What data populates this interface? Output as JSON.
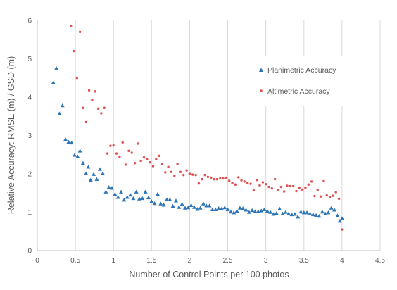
{
  "chart_data": {
    "type": "scatter",
    "title": "",
    "xlabel": "Number of Control Points per 100 photos",
    "ylabel": "Relative Accuracy: RMSE (m) / GSD (m)",
    "xlim": [
      0,
      4.5
    ],
    "ylim": [
      0,
      6
    ],
    "x_ticks": [
      0,
      0.5,
      1,
      1.5,
      2,
      2.5,
      3,
      3.5,
      4,
      4.5
    ],
    "x_tick_labels": [
      "0",
      "0.5",
      "1",
      "1.5",
      "2",
      "2.5",
      "3",
      "3.5",
      "4",
      "4.5"
    ],
    "y_ticks": [
      0,
      1,
      2,
      3,
      4,
      5,
      6
    ],
    "y_tick_labels": [
      "0",
      "1",
      "2",
      "3",
      "4",
      "5",
      "6"
    ],
    "grid": "vertical",
    "legend_position": "top-right",
    "colors": {
      "planimetric": "#2e75b6",
      "altimetric": "#e05050",
      "grid": "#d9d9d9",
      "axis": "#bfbfbf"
    },
    "series": [
      {
        "name": "Planimetric Accuracy",
        "marker": "triangle",
        "points": [
          [
            0.21,
            4.38
          ],
          [
            0.25,
            4.75
          ],
          [
            0.29,
            3.57
          ],
          [
            0.33,
            3.78
          ],
          [
            0.37,
            2.9
          ],
          [
            0.41,
            2.83
          ],
          [
            0.45,
            2.81
          ],
          [
            0.49,
            2.49
          ],
          [
            0.53,
            2.45
          ],
          [
            0.56,
            2.6
          ],
          [
            0.6,
            2.28
          ],
          [
            0.64,
            2.01
          ],
          [
            0.67,
            2.18
          ],
          [
            0.7,
            1.84
          ],
          [
            0.74,
            1.99
          ],
          [
            0.78,
            1.86
          ],
          [
            0.82,
            2.12
          ],
          [
            0.86,
            2.01
          ],
          [
            0.9,
            1.53
          ],
          [
            0.94,
            1.65
          ],
          [
            0.98,
            1.63
          ],
          [
            1.02,
            1.47
          ],
          [
            1.06,
            1.39
          ],
          [
            1.1,
            1.53
          ],
          [
            1.14,
            1.32
          ],
          [
            1.18,
            1.39
          ],
          [
            1.22,
            1.45
          ],
          [
            1.26,
            1.36
          ],
          [
            1.3,
            1.53
          ],
          [
            1.34,
            1.35
          ],
          [
            1.38,
            1.36
          ],
          [
            1.42,
            1.53
          ],
          [
            1.46,
            1.38
          ],
          [
            1.5,
            1.28
          ],
          [
            1.54,
            1.23
          ],
          [
            1.58,
            1.47
          ],
          [
            1.62,
            1.22
          ],
          [
            1.66,
            1.19
          ],
          [
            1.7,
            1.33
          ],
          [
            1.74,
            1.33
          ],
          [
            1.78,
            1.16
          ],
          [
            1.82,
            1.3
          ],
          [
            1.86,
            1.13
          ],
          [
            1.9,
            1.21
          ],
          [
            1.94,
            1.11
          ],
          [
            1.98,
            1.12
          ],
          [
            2.02,
            1.18
          ],
          [
            2.06,
            1.13
          ],
          [
            2.1,
            1.08
          ],
          [
            2.14,
            1.11
          ],
          [
            2.18,
            1.22
          ],
          [
            2.22,
            1.17
          ],
          [
            2.26,
            1.17
          ],
          [
            2.3,
            1.07
          ],
          [
            2.34,
            1.07
          ],
          [
            2.38,
            1.1
          ],
          [
            2.42,
            1.09
          ],
          [
            2.46,
            1.12
          ],
          [
            2.5,
            1.07
          ],
          [
            2.54,
            1.01
          ],
          [
            2.58,
            0.99
          ],
          [
            2.62,
            1.03
          ],
          [
            2.66,
            1.11
          ],
          [
            2.7,
            1.1
          ],
          [
            2.74,
            1.06
          ],
          [
            2.78,
            1.0
          ],
          [
            2.82,
            1.05
          ],
          [
            2.86,
            1.02
          ],
          [
            2.9,
            1.02
          ],
          [
            2.94,
            1.04
          ],
          [
            2.98,
            1.07
          ],
          [
            3.02,
            1.03
          ],
          [
            3.06,
            1.0
          ],
          [
            3.1,
            0.95
          ],
          [
            3.14,
            0.97
          ],
          [
            3.18,
            1.09
          ],
          [
            3.22,
            0.96
          ],
          [
            3.26,
            1.0
          ],
          [
            3.3,
            0.96
          ],
          [
            3.34,
            0.94
          ],
          [
            3.38,
            0.95
          ],
          [
            3.42,
            0.88
          ],
          [
            3.46,
            1.01
          ],
          [
            3.5,
            0.99
          ],
          [
            3.54,
            0.99
          ],
          [
            3.58,
            0.96
          ],
          [
            3.62,
            0.94
          ],
          [
            3.66,
            0.92
          ],
          [
            3.7,
            0.9
          ],
          [
            3.74,
            1.01
          ],
          [
            3.78,
            0.96
          ],
          [
            3.82,
            0.99
          ],
          [
            3.86,
            1.11
          ],
          [
            3.9,
            1.06
          ],
          [
            3.94,
            0.91
          ],
          [
            3.97,
            0.77
          ],
          [
            4.0,
            0.84
          ]
        ]
      },
      {
        "name": "Altimetric Accuracy",
        "marker": "dot",
        "points": [
          [
            0.44,
            5.85
          ],
          [
            0.48,
            5.2
          ],
          [
            0.52,
            4.5
          ],
          [
            0.56,
            5.7
          ],
          [
            0.6,
            3.72
          ],
          [
            0.64,
            3.35
          ],
          [
            0.68,
            4.18
          ],
          [
            0.72,
            3.93
          ],
          [
            0.76,
            4.15
          ],
          [
            0.8,
            3.7
          ],
          [
            0.84,
            3.58
          ],
          [
            0.88,
            3.72
          ],
          [
            0.92,
            2.53
          ],
          [
            0.96,
            2.73
          ],
          [
            1.0,
            2.74
          ],
          [
            1.04,
            2.53
          ],
          [
            1.08,
            2.45
          ],
          [
            1.12,
            2.82
          ],
          [
            1.16,
            2.24
          ],
          [
            1.2,
            2.6
          ],
          [
            1.24,
            2.55
          ],
          [
            1.28,
            2.28
          ],
          [
            1.32,
            2.79
          ],
          [
            1.36,
            2.34
          ],
          [
            1.4,
            2.43
          ],
          [
            1.44,
            2.38
          ],
          [
            1.48,
            2.3
          ],
          [
            1.52,
            2.2
          ],
          [
            1.56,
            2.38
          ],
          [
            1.6,
            2.47
          ],
          [
            1.64,
            2.25
          ],
          [
            1.68,
            2.04
          ],
          [
            1.72,
            2.18
          ],
          [
            1.76,
            2.05
          ],
          [
            1.8,
            1.95
          ],
          [
            1.84,
            2.26
          ],
          [
            1.88,
            2.05
          ],
          [
            1.92,
            1.97
          ],
          [
            1.96,
            2.09
          ],
          [
            2.0,
            2.0
          ],
          [
            2.04,
            1.98
          ],
          [
            2.08,
            1.97
          ],
          [
            2.12,
            1.75
          ],
          [
            2.16,
            1.86
          ],
          [
            2.2,
            1.97
          ],
          [
            2.24,
            1.92
          ],
          [
            2.28,
            1.9
          ],
          [
            2.32,
            1.86
          ],
          [
            2.36,
            1.86
          ],
          [
            2.4,
            1.88
          ],
          [
            2.44,
            1.88
          ],
          [
            2.48,
            1.9
          ],
          [
            2.52,
            1.82
          ],
          [
            2.56,
            1.76
          ],
          [
            2.6,
            1.72
          ],
          [
            2.64,
            1.91
          ],
          [
            2.68,
            1.83
          ],
          [
            2.72,
            1.8
          ],
          [
            2.76,
            1.76
          ],
          [
            2.8,
            1.74
          ],
          [
            2.84,
            1.57
          ],
          [
            2.88,
            1.84
          ],
          [
            2.92,
            1.7
          ],
          [
            2.96,
            1.78
          ],
          [
            3.0,
            1.73
          ],
          [
            3.04,
            1.66
          ],
          [
            3.08,
            1.62
          ],
          [
            3.12,
            1.86
          ],
          [
            3.16,
            1.58
          ],
          [
            3.2,
            1.66
          ],
          [
            3.24,
            1.54
          ],
          [
            3.28,
            1.69
          ],
          [
            3.32,
            1.68
          ],
          [
            3.36,
            1.68
          ],
          [
            3.4,
            1.55
          ],
          [
            3.44,
            1.64
          ],
          [
            3.48,
            1.59
          ],
          [
            3.52,
            1.64
          ],
          [
            3.56,
            1.72
          ],
          [
            3.6,
            1.8
          ],
          [
            3.64,
            1.42
          ],
          [
            3.68,
            1.58
          ],
          [
            3.72,
            1.41
          ],
          [
            3.76,
            1.81
          ],
          [
            3.8,
            1.44
          ],
          [
            3.84,
            1.4
          ],
          [
            3.88,
            1.43
          ],
          [
            3.92,
            1.52
          ],
          [
            3.96,
            1.35
          ],
          [
            4.0,
            0.55
          ]
        ]
      }
    ]
  }
}
